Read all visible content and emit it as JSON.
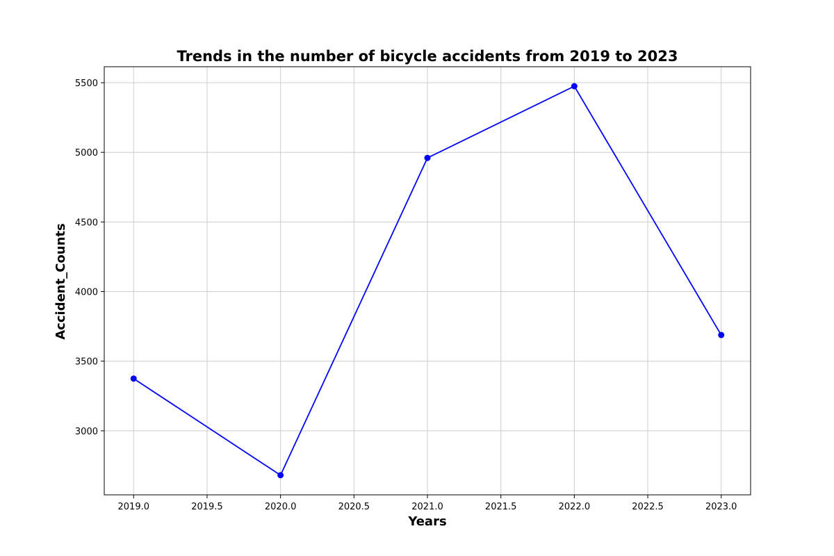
{
  "chart_data": {
    "type": "line",
    "title": "Trends in the number of bicycle accidents from 2019 to 2023",
    "xlabel": "Years",
    "ylabel": "Accident_Counts",
    "x": [
      2019,
      2020,
      2021,
      2022,
      2023
    ],
    "series": [
      {
        "values": [
          3375,
          2681,
          4960,
          5475,
          3688
        ],
        "color": "#0000ff",
        "marker": "circle"
      }
    ],
    "xlim": [
      2018.8,
      2023.2
    ],
    "ylim": [
      2540,
      5615
    ],
    "xticks": [
      "2019.0",
      "2019.5",
      "2020.0",
      "2020.5",
      "2021.0",
      "2021.5",
      "2022.0",
      "2022.5",
      "2023.0"
    ],
    "yticks": [
      "3000",
      "3500",
      "4000",
      "4500",
      "5000",
      "5500"
    ],
    "grid": true,
    "grid_color": "#cccccc"
  }
}
